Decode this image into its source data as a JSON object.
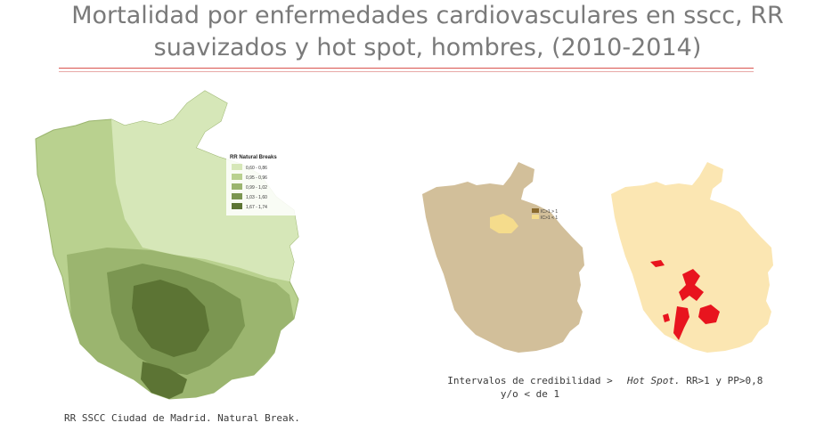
{
  "title": {
    "line1": "Mortalidad por enfermedades cardiovasculares en sscc, RR",
    "line2": "suavizados y hot spot, hombres, (2010-2014)"
  },
  "colors": {
    "rule": "#d9534f",
    "rr_class_1": "#d6e7b8",
    "rr_class_2": "#b9d18f",
    "rr_class_3": "#9bb56f",
    "rr_class_4": "#7b9651",
    "rr_class_5": "#5c7434",
    "credibility_base": "#d2bf9a",
    "credibility_gt1": "#8a6a2e",
    "credibility_lt1": "#f5dc8c",
    "hotspot_base": "#fbe6b2",
    "hotspot": "#e8141e"
  },
  "map1": {
    "legend": {
      "title": "RR Natural Breaks",
      "classes": [
        "0,60 - 0,86",
        "0,95 - 0,96",
        "0,99 - 1,02",
        "1,03 - 1,60",
        "1,67 - 1,74"
      ]
    },
    "caption": "RR SSCC Ciudad de Madrid. Natural Break."
  },
  "map2": {
    "legend": {
      "items": [
        "IC>1 > 1",
        "IC>1 < 1"
      ]
    },
    "caption_line1": "Intervalos de credibilidad >",
    "caption_line2": "y/o < de 1"
  },
  "map3": {
    "caption_prefix": "Hot Spot.",
    "caption_rest": " RR>1 y PP>0,8"
  }
}
